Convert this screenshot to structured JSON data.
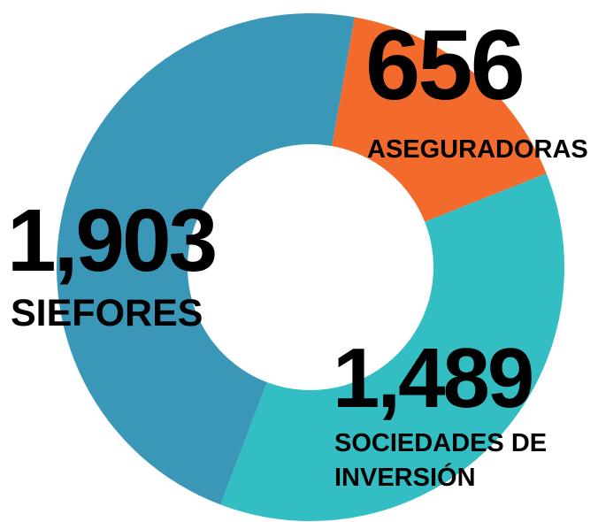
{
  "chart_data": {
    "type": "donut",
    "categories": [
      "ASEGURADORAS",
      "SOCIEDADES DE INVERSIÓN",
      "SIEFORES"
    ],
    "values": [
      656,
      1489,
      1903
    ],
    "value_labels": [
      "656",
      "1,489",
      "1,903"
    ],
    "colors": [
      "#f26b2d",
      "#33bec4",
      "#3a97b7"
    ]
  }
}
